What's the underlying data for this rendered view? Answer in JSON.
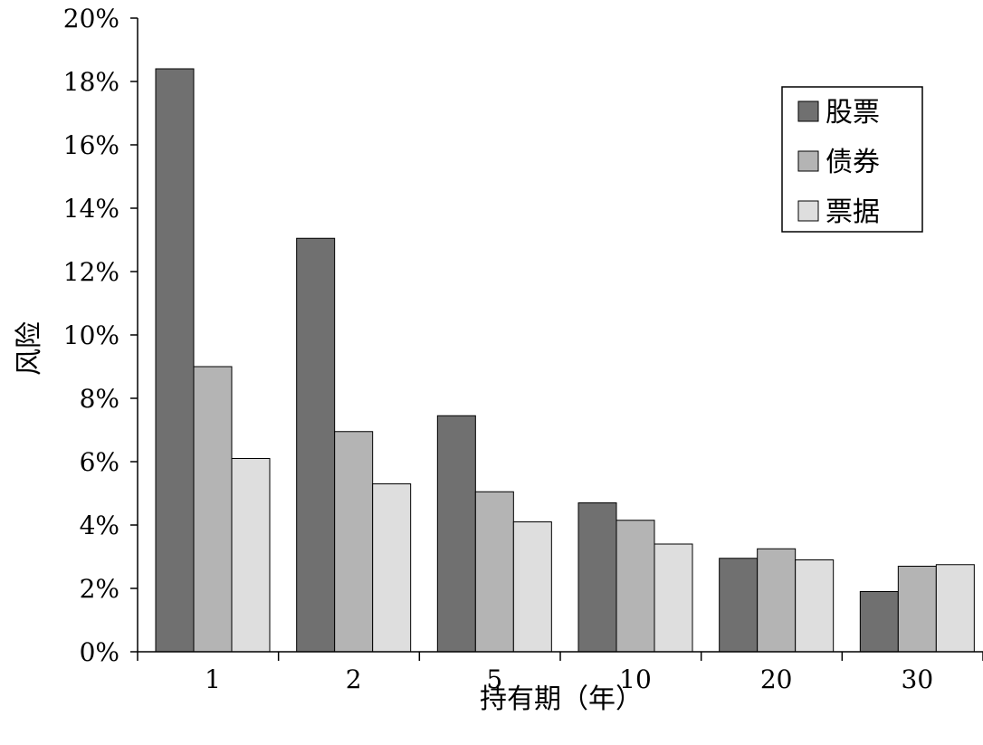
{
  "chart_data": {
    "type": "bar",
    "xlabel": "持有期（年）",
    "ylabel": "风险",
    "categories": [
      "1",
      "2",
      "5",
      "10",
      "20",
      "30"
    ],
    "ylim": [
      0,
      20
    ],
    "yticks": [
      "0%",
      "2%",
      "4%",
      "6%",
      "8%",
      "10%",
      "12%",
      "14%",
      "16%",
      "18%",
      "20%"
    ],
    "series": [
      {
        "name": "股票",
        "color": "#707070",
        "values": [
          18.4,
          13.05,
          7.45,
          4.7,
          2.95,
          1.9
        ]
      },
      {
        "name": "债券",
        "color": "#b4b4b4",
        "values": [
          9.0,
          6.95,
          5.05,
          4.15,
          3.25,
          2.7
        ]
      },
      {
        "name": "票据",
        "color": "#dedede",
        "values": [
          6.1,
          5.3,
          4.1,
          3.4,
          2.9,
          2.75
        ]
      }
    ],
    "legend_position": "top-right",
    "grid": false
  }
}
